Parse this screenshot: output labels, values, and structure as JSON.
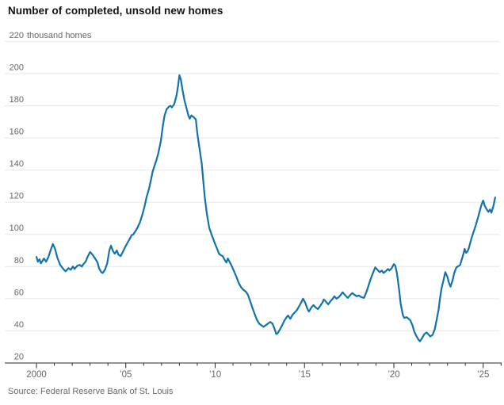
{
  "header": {
    "title": "Number of completed, unsold new homes"
  },
  "footer": {
    "source": "Source: Federal Reserve Bank of St. Louis"
  },
  "colors": {
    "line": "#1173ad",
    "grid": "#e7e7e7",
    "axis": "#2b2b2b",
    "tick_label": "#666666",
    "title_text": "#141414",
    "source_text": "#696969",
    "background": "#ffffff"
  },
  "chart_data": {
    "type": "line",
    "title": "Number of completed, unsold new homes",
    "unit_label": "thousand homes",
    "ylabel": "",
    "xlabel": "",
    "ylim": [
      20,
      220
    ],
    "y_ticks": [
      220,
      200,
      180,
      160,
      140,
      120,
      100,
      80,
      60,
      40,
      20
    ],
    "x_axis_start_year": 2000,
    "x_axis_end_year": 2026,
    "x_tick_years": [
      2000,
      2005,
      2010,
      2015,
      2020,
      2025
    ],
    "x_tick_labels": [
      "2000",
      "’05",
      "’10",
      "’15",
      "’20",
      "’25"
    ],
    "grid": true,
    "legend_position": "none",
    "series": [
      {
        "name": "Completed unsold new homes",
        "points": [
          [
            2000.0,
            86
          ],
          [
            2000.08,
            83
          ],
          [
            2000.17,
            84.5
          ],
          [
            2000.25,
            82
          ],
          [
            2000.42,
            85
          ],
          [
            2000.54,
            83
          ],
          [
            2000.67,
            86
          ],
          [
            2000.79,
            90
          ],
          [
            2000.92,
            94
          ],
          [
            2001.04,
            91
          ],
          [
            2001.17,
            85.5
          ],
          [
            2001.33,
            81
          ],
          [
            2001.5,
            78.5
          ],
          [
            2001.63,
            77
          ],
          [
            2001.79,
            79
          ],
          [
            2001.92,
            78
          ],
          [
            2002.04,
            80
          ],
          [
            2002.13,
            78.5
          ],
          [
            2002.29,
            80.5
          ],
          [
            2002.42,
            81
          ],
          [
            2002.54,
            80
          ],
          [
            2002.63,
            81.5
          ],
          [
            2002.75,
            83
          ],
          [
            2002.88,
            86.5
          ],
          [
            2003.0,
            89
          ],
          [
            2003.13,
            87.5
          ],
          [
            2003.25,
            85.5
          ],
          [
            2003.42,
            82.5
          ],
          [
            2003.5,
            79
          ],
          [
            2003.63,
            76.5
          ],
          [
            2003.71,
            76
          ],
          [
            2003.83,
            78
          ],
          [
            2003.96,
            82
          ],
          [
            2004.08,
            90
          ],
          [
            2004.17,
            93
          ],
          [
            2004.29,
            89.5
          ],
          [
            2004.38,
            88
          ],
          [
            2004.5,
            90
          ],
          [
            2004.58,
            87.5
          ],
          [
            2004.71,
            86.5
          ],
          [
            2004.83,
            89
          ],
          [
            2004.96,
            92
          ],
          [
            2005.08,
            94.5
          ],
          [
            2005.21,
            97
          ],
          [
            2005.33,
            99.5
          ],
          [
            2005.42,
            100
          ],
          [
            2005.54,
            102
          ],
          [
            2005.67,
            104.5
          ],
          [
            2005.79,
            107.5
          ],
          [
            2005.92,
            112
          ],
          [
            2006.04,
            117
          ],
          [
            2006.17,
            123.5
          ],
          [
            2006.29,
            128
          ],
          [
            2006.42,
            134.5
          ],
          [
            2006.5,
            139
          ],
          [
            2006.63,
            143.5
          ],
          [
            2006.71,
            146
          ],
          [
            2006.83,
            151
          ],
          [
            2006.96,
            158
          ],
          [
            2007.08,
            168
          ],
          [
            2007.17,
            174
          ],
          [
            2007.29,
            178
          ],
          [
            2007.42,
            179.5
          ],
          [
            2007.5,
            180
          ],
          [
            2007.58,
            179
          ],
          [
            2007.71,
            181
          ],
          [
            2007.83,
            186
          ],
          [
            2007.92,
            192
          ],
          [
            2008.0,
            199
          ],
          [
            2008.08,
            196.5
          ],
          [
            2008.17,
            190
          ],
          [
            2008.29,
            183
          ],
          [
            2008.42,
            177.5
          ],
          [
            2008.5,
            174
          ],
          [
            2008.58,
            172
          ],
          [
            2008.67,
            174
          ],
          [
            2008.79,
            173
          ],
          [
            2008.92,
            171.5
          ],
          [
            2009.0,
            163
          ],
          [
            2009.13,
            153
          ],
          [
            2009.25,
            144
          ],
          [
            2009.33,
            134
          ],
          [
            2009.42,
            123
          ],
          [
            2009.54,
            112.5
          ],
          [
            2009.67,
            104
          ],
          [
            2009.75,
            101.5
          ],
          [
            2009.88,
            97.5
          ],
          [
            2010.0,
            94
          ],
          [
            2010.13,
            90.5
          ],
          [
            2010.21,
            88
          ],
          [
            2010.33,
            87
          ],
          [
            2010.42,
            86.5
          ],
          [
            2010.54,
            84
          ],
          [
            2010.63,
            82.5
          ],
          [
            2010.71,
            85
          ],
          [
            2010.83,
            82.5
          ],
          [
            2010.96,
            79.5
          ],
          [
            2011.08,
            76.5
          ],
          [
            2011.21,
            73
          ],
          [
            2011.33,
            69.5
          ],
          [
            2011.46,
            67
          ],
          [
            2011.58,
            65.5
          ],
          [
            2011.71,
            64.5
          ],
          [
            2011.83,
            62.5
          ],
          [
            2011.96,
            58.5
          ],
          [
            2012.08,
            54.5
          ],
          [
            2012.21,
            50.5
          ],
          [
            2012.33,
            47
          ],
          [
            2012.46,
            44.5
          ],
          [
            2012.58,
            43.5
          ],
          [
            2012.71,
            42.5
          ],
          [
            2012.83,
            43.5
          ],
          [
            2012.96,
            44.5
          ],
          [
            2013.08,
            45.5
          ],
          [
            2013.21,
            44.5
          ],
          [
            2013.33,
            41
          ],
          [
            2013.42,
            38
          ],
          [
            2013.5,
            38.5
          ],
          [
            2013.63,
            41
          ],
          [
            2013.75,
            43.5
          ],
          [
            2013.88,
            46.5
          ],
          [
            2014.0,
            48.5
          ],
          [
            2014.08,
            49.5
          ],
          [
            2014.21,
            47.5
          ],
          [
            2014.33,
            50
          ],
          [
            2014.46,
            51.5
          ],
          [
            2014.58,
            53
          ],
          [
            2014.71,
            55.5
          ],
          [
            2014.83,
            58
          ],
          [
            2014.92,
            60
          ],
          [
            2015.04,
            57.5
          ],
          [
            2015.17,
            53.5
          ],
          [
            2015.25,
            52
          ],
          [
            2015.38,
            54.5
          ],
          [
            2015.5,
            56
          ],
          [
            2015.63,
            54.5
          ],
          [
            2015.75,
            53.5
          ],
          [
            2015.88,
            55.5
          ],
          [
            2016.0,
            57.5
          ],
          [
            2016.08,
            59.5
          ],
          [
            2016.21,
            58
          ],
          [
            2016.33,
            56.5
          ],
          [
            2016.46,
            58.5
          ],
          [
            2016.58,
            60
          ],
          [
            2016.67,
            61.5
          ],
          [
            2016.79,
            60
          ],
          [
            2016.92,
            61
          ],
          [
            2017.04,
            62.5
          ],
          [
            2017.13,
            64
          ],
          [
            2017.29,
            62
          ],
          [
            2017.42,
            60.5
          ],
          [
            2017.54,
            62
          ],
          [
            2017.67,
            63.5
          ],
          [
            2017.79,
            62.5
          ],
          [
            2017.92,
            61.5
          ],
          [
            2018.04,
            62
          ],
          [
            2018.17,
            61
          ],
          [
            2018.33,
            60.5
          ],
          [
            2018.46,
            64
          ],
          [
            2018.58,
            68
          ],
          [
            2018.71,
            72.5
          ],
          [
            2018.83,
            76
          ],
          [
            2018.96,
            79.5
          ],
          [
            2019.08,
            78
          ],
          [
            2019.21,
            76.5
          ],
          [
            2019.33,
            77.5
          ],
          [
            2019.42,
            76
          ],
          [
            2019.54,
            77
          ],
          [
            2019.67,
            78.5
          ],
          [
            2019.75,
            77.5
          ],
          [
            2019.88,
            79
          ],
          [
            2020.0,
            81.5
          ],
          [
            2020.08,
            80.5
          ],
          [
            2020.17,
            76
          ],
          [
            2020.29,
            66
          ],
          [
            2020.38,
            57
          ],
          [
            2020.5,
            50
          ],
          [
            2020.58,
            48
          ],
          [
            2020.71,
            48.5
          ],
          [
            2020.83,
            47.5
          ],
          [
            2020.92,
            46.5
          ],
          [
            2021.04,
            43.5
          ],
          [
            2021.13,
            40
          ],
          [
            2021.25,
            37
          ],
          [
            2021.38,
            34.5
          ],
          [
            2021.46,
            33.5
          ],
          [
            2021.58,
            35.5
          ],
          [
            2021.71,
            38
          ],
          [
            2021.83,
            39
          ],
          [
            2021.96,
            37.5
          ],
          [
            2022.04,
            36.5
          ],
          [
            2022.17,
            37.5
          ],
          [
            2022.29,
            41
          ],
          [
            2022.38,
            46
          ],
          [
            2022.5,
            53
          ],
          [
            2022.58,
            60
          ],
          [
            2022.67,
            66.5
          ],
          [
            2022.79,
            72
          ],
          [
            2022.88,
            76.5
          ],
          [
            2023.0,
            73.5
          ],
          [
            2023.08,
            70
          ],
          [
            2023.17,
            67.5
          ],
          [
            2023.29,
            71.5
          ],
          [
            2023.38,
            76
          ],
          [
            2023.5,
            79.5
          ],
          [
            2023.58,
            80
          ],
          [
            2023.71,
            81
          ],
          [
            2023.83,
            85.5
          ],
          [
            2023.92,
            89
          ],
          [
            2023.96,
            91
          ],
          [
            2024.04,
            88.5
          ],
          [
            2024.13,
            89.5
          ],
          [
            2024.21,
            92
          ],
          [
            2024.33,
            97
          ],
          [
            2024.46,
            101.5
          ],
          [
            2024.58,
            105.5
          ],
          [
            2024.71,
            110.5
          ],
          [
            2024.83,
            115.5
          ],
          [
            2024.92,
            119
          ],
          [
            2025.0,
            121
          ],
          [
            2025.08,
            118
          ],
          [
            2025.17,
            116
          ],
          [
            2025.29,
            114
          ],
          [
            2025.38,
            115.5
          ],
          [
            2025.46,
            113.5
          ],
          [
            2025.58,
            118
          ],
          [
            2025.67,
            123
          ]
        ]
      }
    ]
  }
}
